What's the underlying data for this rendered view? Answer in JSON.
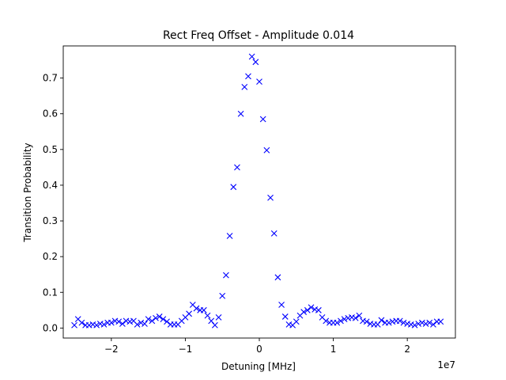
{
  "chart_data": {
    "type": "scatter",
    "title": "Rect Freq Offset - Amplitude 0.014",
    "xlabel": "Detuning [MHz]",
    "ylabel": "Transition Probability",
    "x_offset_text": "1e7",
    "xlim": [
      -2.65,
      2.65
    ],
    "ylim": [
      -0.028,
      0.79
    ],
    "xticks": [
      -2,
      -1,
      0,
      1,
      2
    ],
    "xtick_labels": [
      "−2",
      "−1",
      "0",
      "1",
      "2"
    ],
    "yticks": [
      0.0,
      0.1,
      0.2,
      0.3,
      0.4,
      0.5,
      0.6,
      0.7
    ],
    "ytick_labels": [
      "0.0",
      "0.1",
      "0.2",
      "0.3",
      "0.4",
      "0.5",
      "0.6",
      "0.7"
    ],
    "grid": false,
    "marker": "x",
    "color": "#0000ff",
    "series": [
      {
        "x": [
          -2.5,
          -2.45,
          -2.4,
          -2.35,
          -2.3,
          -2.25,
          -2.2,
          -2.15,
          -2.1,
          -2.05,
          -2.0,
          -1.95,
          -1.9,
          -1.85,
          -1.8,
          -1.75,
          -1.7,
          -1.65,
          -1.6,
          -1.55,
          -1.5,
          -1.45,
          -1.4,
          -1.35,
          -1.3,
          -1.25,
          -1.2,
          -1.15,
          -1.1,
          -1.05,
          -1.0,
          -0.95,
          -0.9,
          -0.85,
          -0.8,
          -0.75,
          -0.7,
          -0.65,
          -0.6,
          -0.55,
          -0.5,
          -0.45,
          -0.4,
          -0.35,
          -0.3,
          -0.25,
          -0.2,
          -0.15,
          -0.1,
          -0.05,
          0.0,
          0.05,
          0.1,
          0.15,
          0.2,
          0.25,
          0.3,
          0.35,
          0.4,
          0.45,
          0.5,
          0.55,
          0.6,
          0.65,
          0.7,
          0.75,
          0.8,
          0.85,
          0.9,
          0.95,
          1.0,
          1.05,
          1.1,
          1.15,
          1.2,
          1.25,
          1.3,
          1.35,
          1.4,
          1.45,
          1.5,
          1.55,
          1.6,
          1.65,
          1.7,
          1.75,
          1.8,
          1.85,
          1.9,
          1.95,
          2.0,
          2.05,
          2.1,
          2.15,
          2.2,
          2.25,
          2.3,
          2.35,
          2.4,
          2.45
        ],
        "y": [
          0.008,
          0.025,
          0.015,
          0.008,
          0.008,
          0.01,
          0.008,
          0.012,
          0.01,
          0.015,
          0.015,
          0.02,
          0.018,
          0.012,
          0.02,
          0.018,
          0.02,
          0.01,
          0.015,
          0.012,
          0.025,
          0.02,
          0.028,
          0.032,
          0.025,
          0.018,
          0.01,
          0.01,
          0.01,
          0.02,
          0.03,
          0.04,
          0.065,
          0.055,
          0.05,
          0.05,
          0.035,
          0.02,
          0.008,
          0.03,
          0.09,
          0.148,
          0.258,
          0.395,
          0.45,
          0.6,
          0.675,
          0.705,
          0.76,
          0.745,
          0.69,
          0.585,
          0.498,
          0.365,
          0.265,
          0.142,
          0.065,
          0.032,
          0.01,
          0.008,
          0.018,
          0.035,
          0.045,
          0.05,
          0.058,
          0.052,
          0.05,
          0.03,
          0.02,
          0.015,
          0.015,
          0.015,
          0.02,
          0.025,
          0.028,
          0.03,
          0.028,
          0.035,
          0.02,
          0.018,
          0.012,
          0.01,
          0.01,
          0.022,
          0.015,
          0.015,
          0.018,
          0.02,
          0.02,
          0.015,
          0.012,
          0.01,
          0.008,
          0.012,
          0.015,
          0.012,
          0.015,
          0.01,
          0.018,
          0.018
        ]
      }
    ]
  }
}
